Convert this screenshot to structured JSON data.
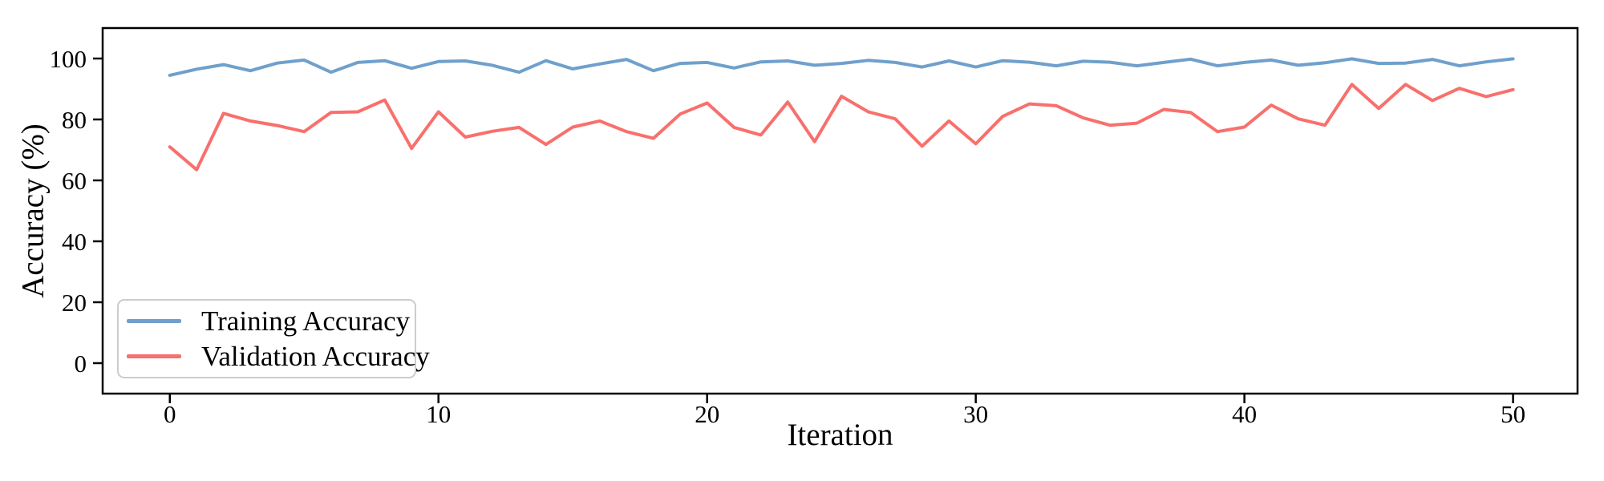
{
  "chart_data": {
    "type": "line",
    "title": "",
    "xlabel": "Iteration",
    "ylabel": "Accuracy (%)",
    "x": [
      0,
      1,
      2,
      3,
      4,
      5,
      6,
      7,
      8,
      9,
      10,
      11,
      12,
      13,
      14,
      15,
      16,
      17,
      18,
      19,
      20,
      21,
      22,
      23,
      24,
      25,
      26,
      27,
      28,
      29,
      30,
      31,
      32,
      33,
      34,
      35,
      36,
      37,
      38,
      39,
      40,
      41,
      42,
      43,
      44,
      45,
      46,
      47,
      48,
      49,
      50
    ],
    "series": [
      {
        "name": "Training Accuracy",
        "color": "#6FA0CB",
        "values": [
          94.5,
          96.5,
          98.0,
          96.0,
          98.5,
          99.5,
          95.5,
          98.7,
          99.3,
          96.8,
          99.0,
          99.2,
          97.8,
          95.5,
          99.3,
          96.6,
          98.2,
          99.7,
          96.0,
          98.4,
          98.7,
          96.9,
          98.9,
          99.2,
          97.8,
          98.4,
          99.4,
          98.7,
          97.2,
          99.2,
          97.2,
          99.3,
          98.8,
          97.6,
          99.1,
          98.8,
          97.6,
          98.7,
          99.8,
          97.6,
          98.7,
          99.5,
          97.8,
          98.6,
          99.9,
          98.4,
          98.5,
          99.7,
          97.6,
          98.9,
          99.9
        ]
      },
      {
        "name": "Validation Accuracy",
        "color": "#F8706C",
        "values": [
          71.0,
          63.5,
          82.0,
          79.5,
          78.0,
          76.0,
          82.3,
          82.5,
          86.4,
          70.5,
          82.5,
          74.2,
          76.1,
          77.4,
          71.8,
          77.5,
          79.5,
          76.0,
          73.8,
          81.8,
          85.4,
          77.4,
          74.9,
          85.7,
          72.7,
          87.6,
          82.5,
          80.2,
          71.2,
          79.5,
          72.0,
          81.0,
          85.1,
          84.5,
          80.5,
          78.1,
          78.8,
          83.3,
          82.3,
          76.0,
          77.5,
          84.7,
          80.2,
          78.1,
          91.5,
          83.6,
          91.5,
          86.2,
          90.2,
          87.5,
          89.8
        ]
      }
    ],
    "xticks": [
      0,
      10,
      20,
      30,
      40,
      50
    ],
    "yticks": [
      0,
      20,
      40,
      60,
      80,
      100
    ],
    "xlim": [
      -2.5,
      52.4
    ],
    "ylim": [
      -10,
      110
    ],
    "grid": false,
    "legend_position": "lower left",
    "axis_color": "#000000",
    "background_color": "#ffffff"
  }
}
